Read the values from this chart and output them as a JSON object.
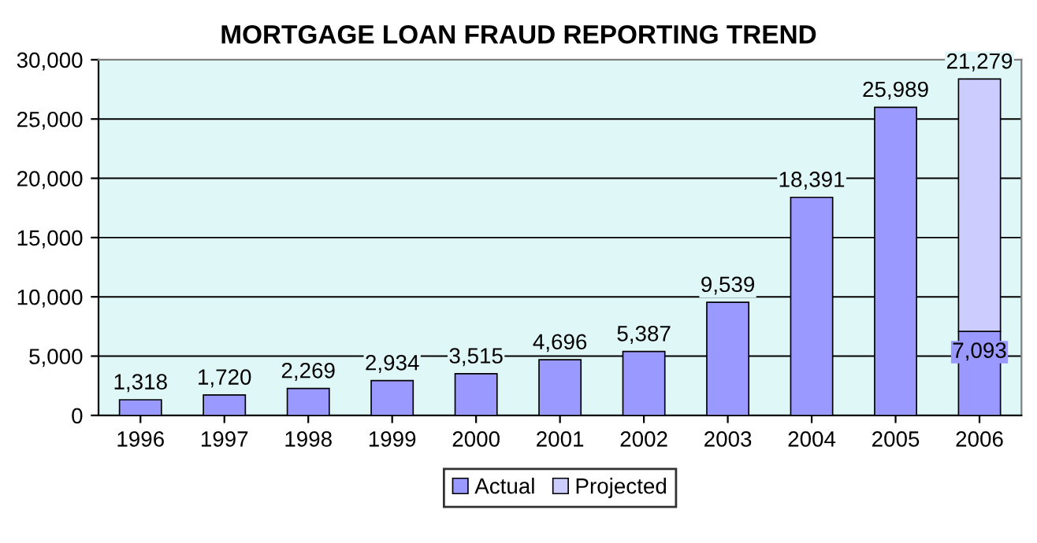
{
  "chart_data": {
    "type": "bar",
    "title": "MORTGAGE LOAN FRAUD REPORTING TREND",
    "categories": [
      "1996",
      "1997",
      "1998",
      "1999",
      "2000",
      "2001",
      "2002",
      "2003",
      "2004",
      "2005",
      "2006"
    ],
    "series": [
      {
        "name": "Actual",
        "color": "#9999ff",
        "values": [
          1318,
          1720,
          2269,
          2934,
          3515,
          4696,
          5387,
          9539,
          18391,
          25989,
          7093
        ],
        "value_labels": [
          "1,318",
          "1,720",
          "2,269",
          "2,934",
          "3,515",
          "4,696",
          "5,387",
          "9,539",
          "18,391",
          "25,989",
          "7,093"
        ]
      },
      {
        "name": "Projected",
        "color": "#ccccff",
        "values": [
          null,
          null,
          null,
          null,
          null,
          null,
          null,
          null,
          null,
          null,
          21279
        ],
        "value_labels": [
          null,
          null,
          null,
          null,
          null,
          null,
          null,
          null,
          null,
          null,
          "21,279"
        ]
      }
    ],
    "stacked": true,
    "ylim": [
      0,
      30000
    ],
    "yticks": [
      {
        "value": 0,
        "label": "0"
      },
      {
        "value": 5000,
        "label": "5,000"
      },
      {
        "value": 10000,
        "label": "10,000"
      },
      {
        "value": 15000,
        "label": "15,000"
      },
      {
        "value": 20000,
        "label": "20,000"
      },
      {
        "value": 25000,
        "label": "25,000"
      },
      {
        "value": 30000,
        "label": "30,000"
      }
    ],
    "grid": "y",
    "legend": "bottom"
  }
}
